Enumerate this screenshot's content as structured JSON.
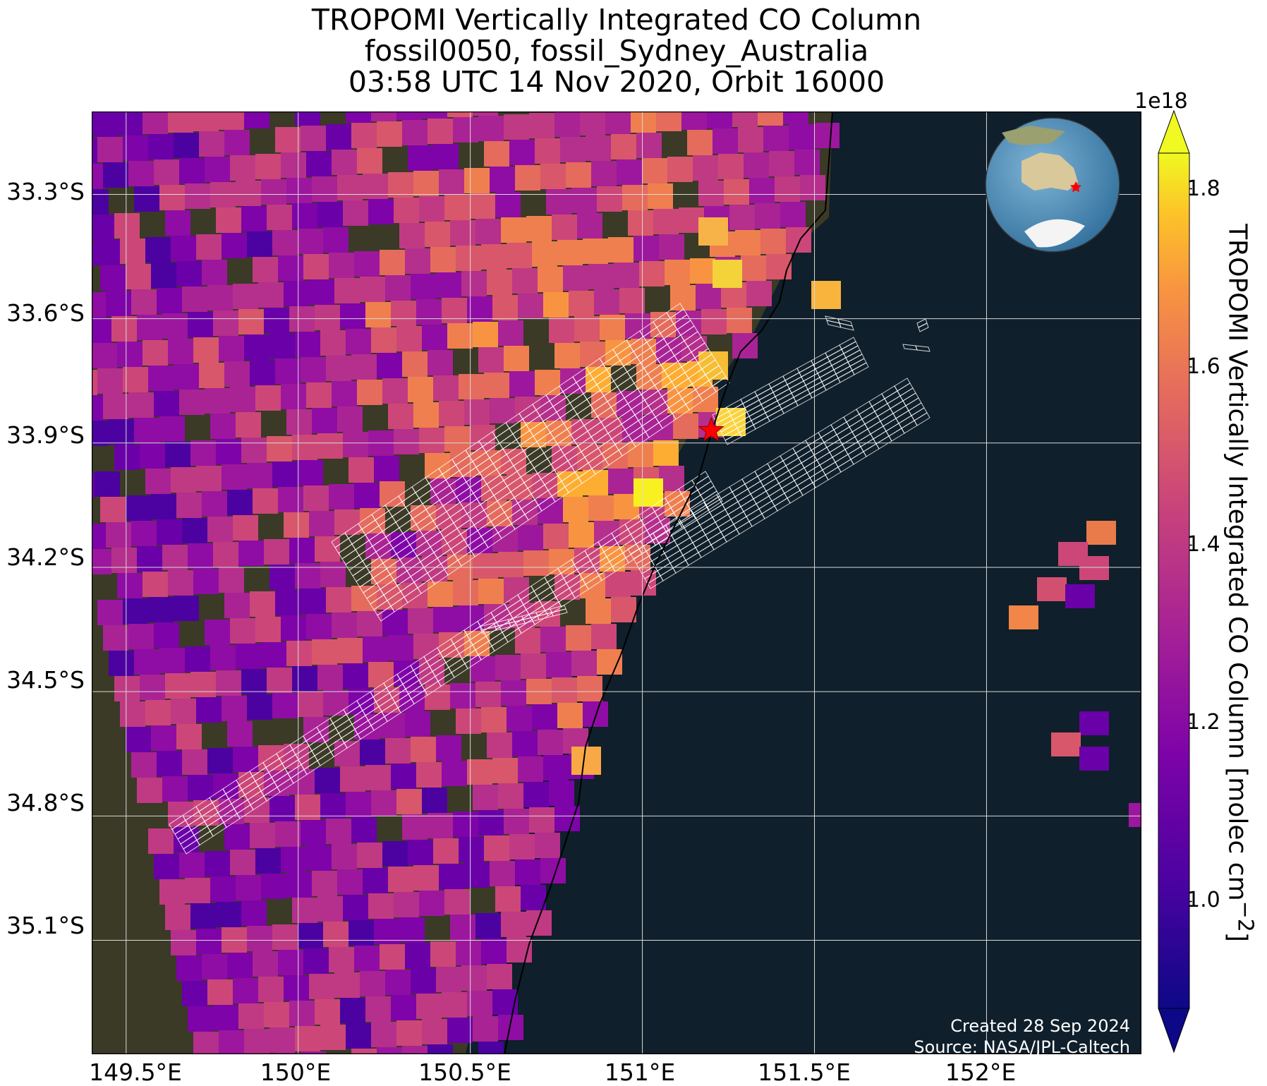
{
  "title": {
    "line1": "TROPOMI Vertically Integrated CO Column",
    "line2": "fossil0050, fossil_Sydney_Australia",
    "line3": "03:58 UTC 14 Nov 2020, Orbit 16000"
  },
  "map": {
    "lon_range": [
      149.4,
      152.45
    ],
    "lat_range": [
      -35.375,
      -33.1
    ],
    "lon_ticks": [
      "149.5°E",
      "150°E",
      "150.5°E",
      "151°E",
      "151.5°E",
      "152°E"
    ],
    "lat_ticks": [
      "33.3°S",
      "33.6°S",
      "33.9°S",
      "34.2°S",
      "34.5°S",
      "34.8°S",
      "35.1°S"
    ],
    "site": {
      "name": "Sydney",
      "lon": 151.2,
      "lat": -33.87,
      "marker": "red-star-icon"
    },
    "basemap": "satellite imagery, dark ocean",
    "pixel_colormap": "plasma",
    "target_footprints": "white outline grid"
  },
  "colorbar": {
    "label": "TROPOMI Vertically Integrated CO Column [molec cm$^{-2}$]",
    "exponent": "1e18",
    "ticks": [
      "1.0",
      "1.2",
      "1.4",
      "1.6",
      "1.8"
    ],
    "range": [
      0.88,
      1.84
    ],
    "extend": "both",
    "colormap": "plasma"
  },
  "inset": {
    "type": "globe",
    "centered_on": "Australia",
    "marker": "red-star-icon"
  },
  "credits": {
    "created": "Created 28 Sep 2024",
    "source": "Source: NASA/JPL-Caltech"
  },
  "colors": {
    "ocean": "#0f1f2b",
    "land": "#3a3a26",
    "star": "#ff0000",
    "grid": "#d9d9d9",
    "footprint": "#ffffff"
  }
}
